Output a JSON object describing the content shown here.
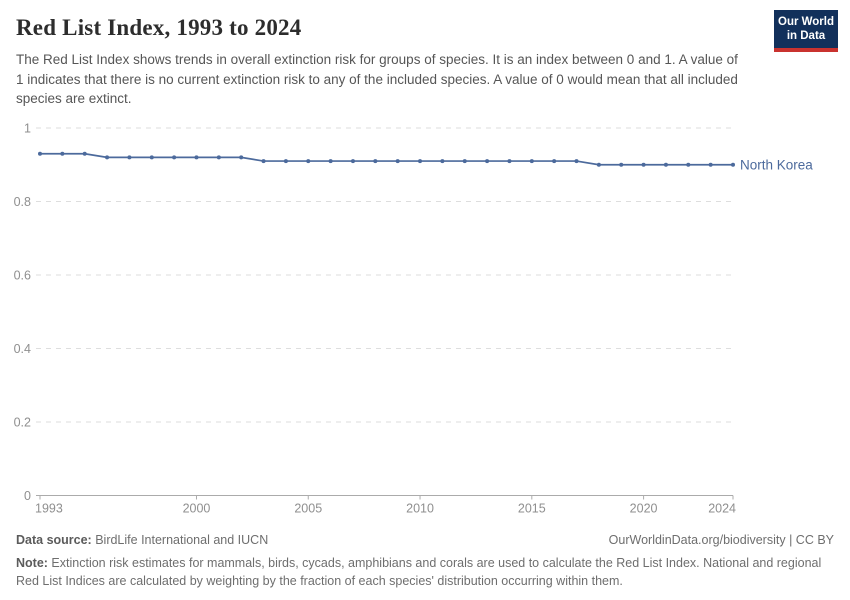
{
  "header": {
    "title": "Red List Index, 1993 to 2024",
    "subtitle": "The Red List Index shows trends in overall extinction risk for groups of species. It is an index between 0 and 1. A value of 1 indicates that there is no current extinction risk to any of the included species. A value of 0 would mean that all included species are extinct."
  },
  "logo": {
    "line1": "Our World",
    "line2": "in Data",
    "background_color": "#12305b",
    "stripe_color": "#c9322f"
  },
  "footer": {
    "source_label": "Data source:",
    "source_text": " BirdLife International and IUCN",
    "link_text": "OurWorldinData.org/biodiversity | CC BY",
    "note_label": "Note:",
    "note_text": " Extinction risk estimates for mammals, birds, cycads, amphibians and corals are used to calculate the Red List Index. National and regional Red List Indices are calculated by weighting by the fraction of each species' distribution occurring within them."
  },
  "chart_data": {
    "type": "line",
    "title": "Red List Index, 1993 to 2024",
    "xlabel": "",
    "ylabel": "",
    "ylim": [
      0,
      1
    ],
    "yticks": [
      0,
      0.2,
      0.4,
      0.6,
      0.8,
      1
    ],
    "xticks": [
      1993,
      2000,
      2005,
      2010,
      2015,
      2020,
      2024
    ],
    "grid": "horizontal-dashed",
    "legend_position": "end-of-line-label",
    "x": [
      1993,
      1994,
      1995,
      1996,
      1997,
      1998,
      1999,
      2000,
      2001,
      2002,
      2003,
      2004,
      2005,
      2006,
      2007,
      2008,
      2009,
      2010,
      2011,
      2012,
      2013,
      2014,
      2015,
      2016,
      2017,
      2018,
      2019,
      2020,
      2021,
      2022,
      2023,
      2024
    ],
    "series": [
      {
        "name": "North Korea",
        "color": "#4c6a9c",
        "values": [
          0.93,
          0.93,
          0.93,
          0.92,
          0.92,
          0.92,
          0.92,
          0.92,
          0.92,
          0.92,
          0.91,
          0.91,
          0.91,
          0.91,
          0.91,
          0.91,
          0.91,
          0.91,
          0.91,
          0.91,
          0.91,
          0.91,
          0.91,
          0.91,
          0.91,
          0.9,
          0.9,
          0.9,
          0.9,
          0.9,
          0.9,
          0.9
        ]
      }
    ]
  }
}
